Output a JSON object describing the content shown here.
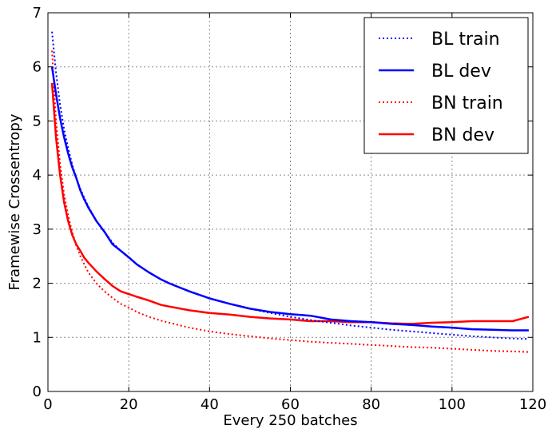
{
  "chart_data": {
    "type": "line",
    "title": "",
    "xlabel": "Every 250 batches",
    "ylabel": "Framewise Crossentropy",
    "xlim": [
      0,
      120
    ],
    "ylim": [
      0,
      7
    ],
    "xticks": [
      "0",
      "20",
      "40",
      "60",
      "80",
      "100",
      "120"
    ],
    "yticks": [
      "0",
      "1",
      "2",
      "3",
      "4",
      "5",
      "6",
      "7"
    ],
    "grid": true,
    "legend_position": "top-right",
    "x": [
      1,
      2,
      3,
      4,
      5,
      6,
      7,
      8,
      9,
      10,
      12,
      14,
      16,
      18,
      20,
      22,
      25,
      28,
      30,
      35,
      40,
      45,
      50,
      55,
      60,
      65,
      70,
      75,
      80,
      85,
      90,
      95,
      100,
      105,
      110,
      115,
      119
    ],
    "series": [
      {
        "name": "BL train",
        "color": "#0000ff",
        "style": "dotted",
        "values": [
          6.65,
          5.9,
          5.3,
          4.85,
          4.5,
          4.2,
          3.95,
          3.75,
          3.58,
          3.42,
          3.15,
          2.95,
          2.75,
          2.6,
          2.47,
          2.35,
          2.2,
          2.07,
          2.0,
          1.85,
          1.72,
          1.62,
          1.53,
          1.45,
          1.38,
          1.32,
          1.27,
          1.22,
          1.18,
          1.14,
          1.11,
          1.08,
          1.05,
          1.02,
          1.0,
          0.98,
          0.97
        ]
      },
      {
        "name": "BL dev",
        "color": "#0000ff",
        "style": "solid",
        "values": [
          6.0,
          5.5,
          5.05,
          4.7,
          4.4,
          4.15,
          3.95,
          3.72,
          3.55,
          3.4,
          3.15,
          2.95,
          2.72,
          2.6,
          2.48,
          2.35,
          2.2,
          2.07,
          2.0,
          1.85,
          1.72,
          1.62,
          1.53,
          1.47,
          1.43,
          1.4,
          1.33,
          1.3,
          1.28,
          1.25,
          1.23,
          1.2,
          1.18,
          1.15,
          1.14,
          1.13,
          1.13
        ]
      },
      {
        "name": "BN train",
        "color": "#ff0000",
        "style": "dotted",
        "values": [
          6.3,
          5.0,
          4.2,
          3.65,
          3.25,
          2.95,
          2.7,
          2.5,
          2.35,
          2.2,
          2.0,
          1.85,
          1.73,
          1.62,
          1.55,
          1.47,
          1.38,
          1.31,
          1.27,
          1.18,
          1.11,
          1.06,
          1.02,
          0.98,
          0.95,
          0.92,
          0.9,
          0.88,
          0.86,
          0.84,
          0.82,
          0.81,
          0.79,
          0.77,
          0.75,
          0.74,
          0.73
        ]
      },
      {
        "name": "BN dev",
        "color": "#ff0000",
        "style": "solid",
        "values": [
          5.7,
          4.7,
          4.0,
          3.5,
          3.15,
          2.9,
          2.72,
          2.6,
          2.47,
          2.38,
          2.22,
          2.08,
          1.95,
          1.85,
          1.8,
          1.75,
          1.68,
          1.6,
          1.57,
          1.5,
          1.45,
          1.42,
          1.38,
          1.35,
          1.33,
          1.3,
          1.3,
          1.28,
          1.28,
          1.26,
          1.25,
          1.27,
          1.28,
          1.3,
          1.3,
          1.3,
          1.38
        ]
      }
    ]
  }
}
